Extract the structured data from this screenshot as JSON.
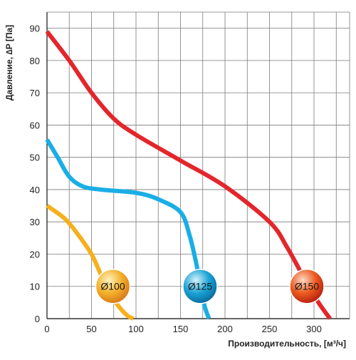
{
  "chart_data": {
    "type": "line",
    "xlabel": "Производительность, [м³/ч]",
    "ylabel": "Давление, ∆P [Па]",
    "xlim": [
      0,
      340
    ],
    "ylim": [
      0,
      95
    ],
    "x_ticks": [
      0,
      50,
      100,
      150,
      200,
      250,
      300
    ],
    "y_ticks": [
      0,
      10,
      20,
      30,
      40,
      50,
      60,
      70,
      80,
      90
    ],
    "grid": true,
    "series": [
      {
        "name": "Ø100",
        "color": "#f6b01e",
        "points": [
          [
            0,
            35
          ],
          [
            20,
            31
          ],
          [
            35,
            26
          ],
          [
            50,
            20
          ],
          [
            60,
            14
          ],
          [
            70,
            8
          ],
          [
            80,
            4
          ],
          [
            90,
            1
          ],
          [
            97,
            0
          ]
        ],
        "badge_colors": [
          "#fdf3c0",
          "#f4b02a",
          "#d6781a"
        ],
        "badge_at": [
          74,
          10
        ]
      },
      {
        "name": "Ø125",
        "color": "#1aaee6",
        "points": [
          [
            0,
            55.5
          ],
          [
            12,
            50
          ],
          [
            25,
            44
          ],
          [
            40,
            41
          ],
          [
            60,
            40
          ],
          [
            100,
            39
          ],
          [
            125,
            37
          ],
          [
            150,
            33
          ],
          [
            160,
            26
          ],
          [
            167,
            18
          ],
          [
            172,
            11
          ],
          [
            177,
            4
          ],
          [
            182,
            0
          ]
        ],
        "badge_colors": [
          "#d6f2fb",
          "#1aa3d6",
          "#0a6a9c"
        ],
        "badge_at": [
          172,
          10
        ]
      },
      {
        "name": "Ø150",
        "color": "#e3262b",
        "points": [
          [
            0,
            89
          ],
          [
            25,
            80
          ],
          [
            50,
            70
          ],
          [
            75,
            62
          ],
          [
            100,
            57
          ],
          [
            150,
            49
          ],
          [
            200,
            41
          ],
          [
            250,
            30
          ],
          [
            270,
            22
          ],
          [
            290,
            12
          ],
          [
            305,
            5
          ],
          [
            318,
            0
          ]
        ],
        "badge_colors": [
          "#fcd9c6",
          "#ec5a1e",
          "#b52111"
        ],
        "badge_at": [
          292,
          10
        ]
      }
    ]
  }
}
